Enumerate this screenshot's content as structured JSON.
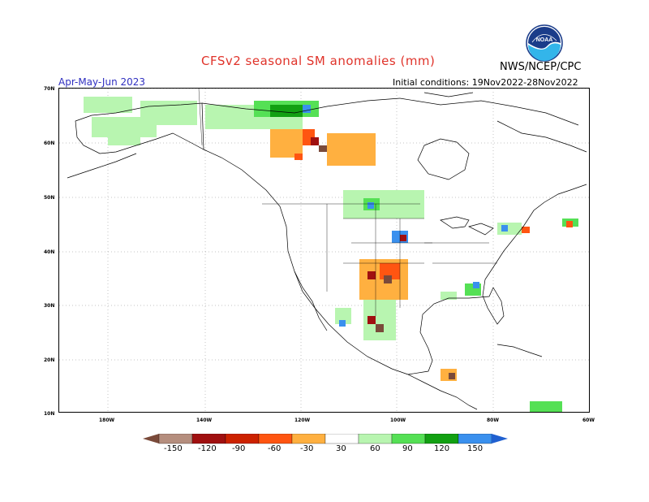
{
  "header": {
    "title": "CFSv2 seasonal SM anomalies (mm)",
    "agency": "NWS/NCEP/CPC",
    "season": "Apr-May-Jun 2023",
    "initial_conditions": "Initial conditions: 19Nov2022-28Nov2022",
    "logo_text": "NOAA"
  },
  "axes": {
    "lat_labels": [
      "70N",
      "60N",
      "50N",
      "40N",
      "30N",
      "20N",
      "10N"
    ],
    "lon_labels": [
      "180W",
      "140W",
      "120W",
      "100W",
      "80W",
      "60W"
    ]
  },
  "legend": {
    "labels": [
      "-150",
      "-120",
      "-90",
      "-60",
      "-30",
      "30",
      "60",
      "90",
      "120",
      "150"
    ],
    "colors": [
      "#7a4a3a",
      "#b58e7e",
      "#a01010",
      "#cc2200",
      "#ff5511",
      "#ffb040",
      "#ffffff",
      "#b8f5b0",
      "#55e055",
      "#12a012",
      "#3a90ee",
      "#2060d0"
    ]
  },
  "colors": {
    "title": "#e0332a",
    "season": "#3030c0",
    "grid": "#888888"
  }
}
